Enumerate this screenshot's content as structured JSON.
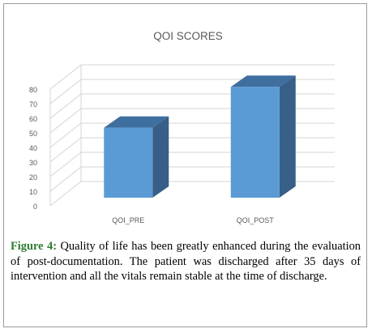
{
  "figure": {
    "label": "Figure 4:",
    "caption": "Quality of life has been greatly enhanced during the evaluation of post-documentation. The patient was discharged after 35 days of intervention and all the vitals remain stable at the time of discharge."
  },
  "chart_data": {
    "type": "bar",
    "title": "QOI SCORES",
    "categories": [
      "QOI_PRE",
      "QOI_POST"
    ],
    "values": [
      48,
      76
    ],
    "ylim": [
      0,
      80
    ],
    "yticks": [
      "0",
      "10",
      "20",
      "30",
      "40",
      "50",
      "60",
      "70",
      "80"
    ],
    "grid": true,
    "three_d": true,
    "colors": {
      "front": "#5b9bd5",
      "top": "#3f6f9f",
      "side": "#375f87",
      "grid": "#d4d4d4",
      "text": "#595959"
    }
  }
}
